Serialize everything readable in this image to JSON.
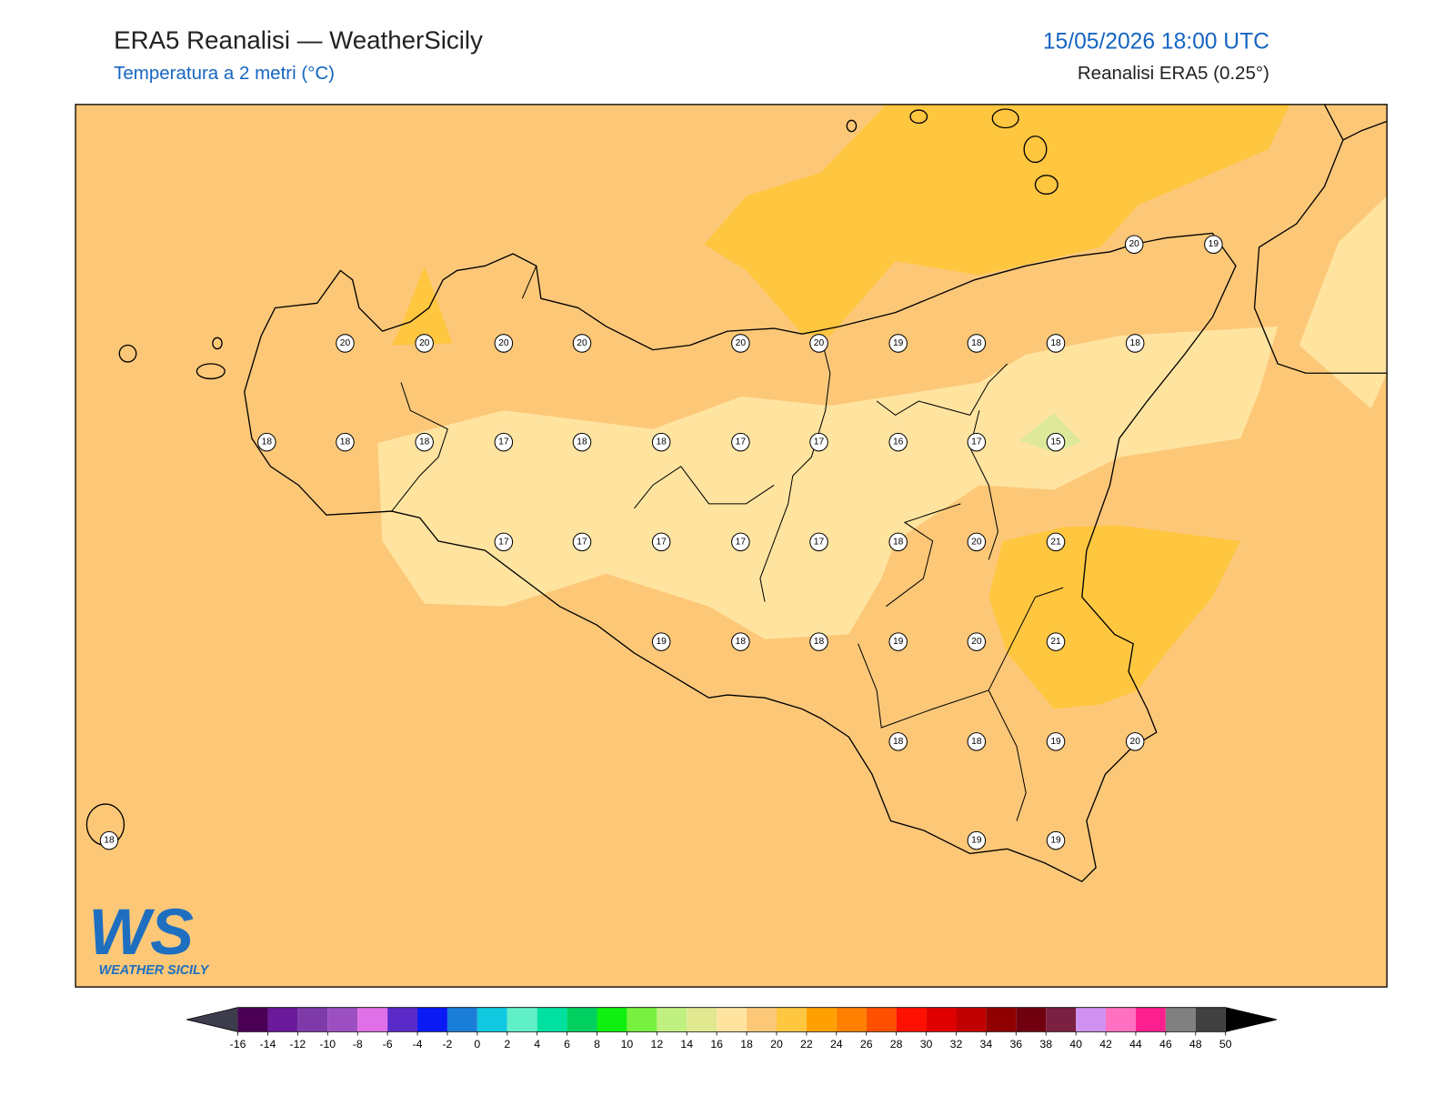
{
  "header": {
    "title": "ERA5 Reanalisi — WeatherSicily",
    "subtitle": "Temperatura a 2 metri (°C)",
    "datetime": "15/05/2026 18:00 UTC",
    "source": "Reanalisi ERA5 (0.25°)"
  },
  "stations": [
    20,
    19,
    20,
    20,
    20,
    20,
    20,
    20,
    19,
    18,
    18,
    18,
    18,
    18,
    18,
    17,
    18,
    18,
    17,
    17,
    16,
    17,
    15,
    17,
    17,
    17,
    17,
    17,
    18,
    20,
    21,
    19,
    18,
    18,
    19,
    20,
    21,
    18,
    18,
    19,
    20,
    18,
    19,
    19
  ],
  "colorbar": {
    "ticks": [
      -16,
      -14,
      -12,
      -10,
      -8,
      -6,
      -4,
      -2,
      0,
      2,
      4,
      6,
      8,
      10,
      12,
      14,
      16,
      18,
      20,
      22,
      24,
      26,
      28,
      30,
      32,
      34,
      36,
      38,
      40,
      42,
      44,
      46,
      48,
      50
    ],
    "colors": [
      "#4b0055",
      "#6a1a9a",
      "#7d3aa8",
      "#9c4fc0",
      "#e070e8",
      "#5a2ac8",
      "#0a1af5",
      "#1a7ed8",
      "#10c8e0",
      "#60f0c8",
      "#00e0a0",
      "#00d060",
      "#10f010",
      "#78f040",
      "#c0f080",
      "#e0e890",
      "#ffe4a0",
      "#fcc878",
      "#ffc640",
      "#ffa000",
      "#ff8000",
      "#ff5000",
      "#ff1000",
      "#e00000",
      "#c00000",
      "#900000",
      "#700010",
      "#7a2040",
      "#d090f0",
      "#ff70c0",
      "#ff2090",
      "#808080",
      "#404040"
    ],
    "under_color": "#3c3c4c",
    "over_color": "#000000"
  },
  "logo": {
    "mark": "WS",
    "text": "WEATHER SICILY"
  }
}
